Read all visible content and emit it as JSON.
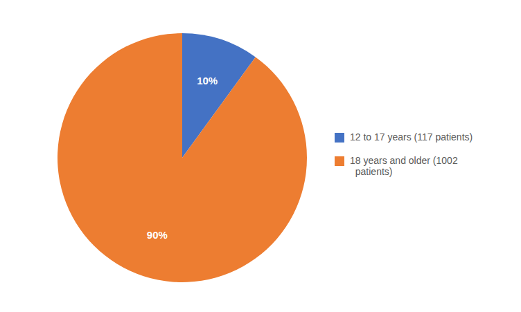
{
  "chart_data": {
    "type": "pie",
    "categories": [
      "12 to 17 years (117 patients)",
      "18 years and older (1002\n  patients)"
    ],
    "values": [
      10,
      90
    ],
    "value_labels": [
      "10%",
      "90%"
    ],
    "colors": [
      "#4472C4",
      "#ED7D31"
    ],
    "data_labels": true,
    "legend": "right"
  }
}
